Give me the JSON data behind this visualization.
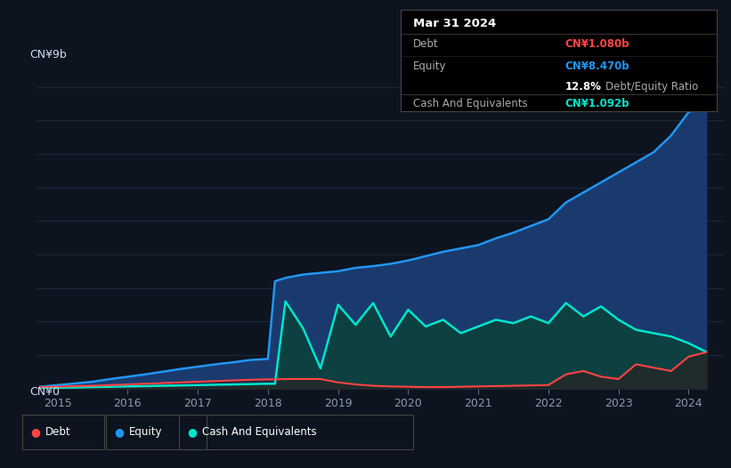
{
  "bg_color": "#0d1420",
  "plot_bg_color": "#0d1420",
  "grid_color": "#1e2d3d",
  "title_label": "CN¥9b",
  "zero_label": "CN¥0",
  "x_ticks": [
    2015,
    2016,
    2017,
    2018,
    2019,
    2020,
    2021,
    2022,
    2023,
    2024
  ],
  "ylim": [
    0,
    9.5
  ],
  "xlim": [
    2014.7,
    2024.5
  ],
  "tooltip_title": "Mar 31 2024",
  "tooltip_debt_label": "Debt",
  "tooltip_debt_value": "CN¥1.080b",
  "tooltip_equity_label": "Equity",
  "tooltip_equity_value": "CN¥8.470b",
  "tooltip_ratio_value": "12.8%",
  "tooltip_ratio_label": "Debt/Equity Ratio",
  "tooltip_cash_label": "Cash And Equivalents",
  "tooltip_cash_value": "CN¥1.092b",
  "legend_debt_label": "Debt",
  "legend_equity_label": "Equity",
  "legend_cash_label": "Cash And Equivalents",
  "debt_color": "#ff4444",
  "equity_color": "#2196f3",
  "cash_color": "#00e5cc",
  "equity_fill_color": "#1a3a6e",
  "cash_fill_color": "#0d4040",
  "years": [
    2014.75,
    2015.0,
    2015.25,
    2015.5,
    2015.75,
    2016.0,
    2016.25,
    2016.5,
    2016.75,
    2017.0,
    2017.25,
    2017.5,
    2017.75,
    2018.0,
    2018.1,
    2018.25,
    2018.5,
    2018.75,
    2019.0,
    2019.25,
    2019.5,
    2019.75,
    2020.0,
    2020.25,
    2020.5,
    2020.75,
    2021.0,
    2021.25,
    2021.5,
    2021.75,
    2022.0,
    2022.25,
    2022.5,
    2022.75,
    2023.0,
    2023.25,
    2023.5,
    2023.75,
    2024.0,
    2024.25
  ],
  "equity": [
    0.05,
    0.1,
    0.15,
    0.2,
    0.28,
    0.35,
    0.42,
    0.5,
    0.58,
    0.65,
    0.72,
    0.78,
    0.85,
    0.88,
    3.2,
    3.3,
    3.4,
    3.45,
    3.5,
    3.6,
    3.65,
    3.72,
    3.82,
    3.95,
    4.08,
    4.18,
    4.28,
    4.48,
    4.65,
    4.85,
    5.05,
    5.55,
    5.85,
    6.15,
    6.45,
    6.75,
    7.05,
    7.55,
    8.25,
    8.47
  ],
  "debt": [
    0.04,
    0.05,
    0.07,
    0.08,
    0.1,
    0.12,
    0.14,
    0.16,
    0.18,
    0.2,
    0.22,
    0.24,
    0.26,
    0.27,
    0.27,
    0.28,
    0.28,
    0.28,
    0.18,
    0.12,
    0.08,
    0.06,
    0.05,
    0.04,
    0.04,
    0.05,
    0.06,
    0.07,
    0.08,
    0.09,
    0.1,
    0.42,
    0.52,
    0.35,
    0.28,
    0.72,
    0.62,
    0.52,
    0.95,
    1.08
  ],
  "cash": [
    0.01,
    0.02,
    0.03,
    0.04,
    0.05,
    0.06,
    0.07,
    0.08,
    0.09,
    0.1,
    0.11,
    0.12,
    0.13,
    0.14,
    0.14,
    2.6,
    1.8,
    0.6,
    2.5,
    1.9,
    2.55,
    1.55,
    2.35,
    1.85,
    2.05,
    1.65,
    1.85,
    2.05,
    1.95,
    2.15,
    1.95,
    2.55,
    2.15,
    2.45,
    2.05,
    1.75,
    1.65,
    1.55,
    1.35,
    1.092
  ]
}
